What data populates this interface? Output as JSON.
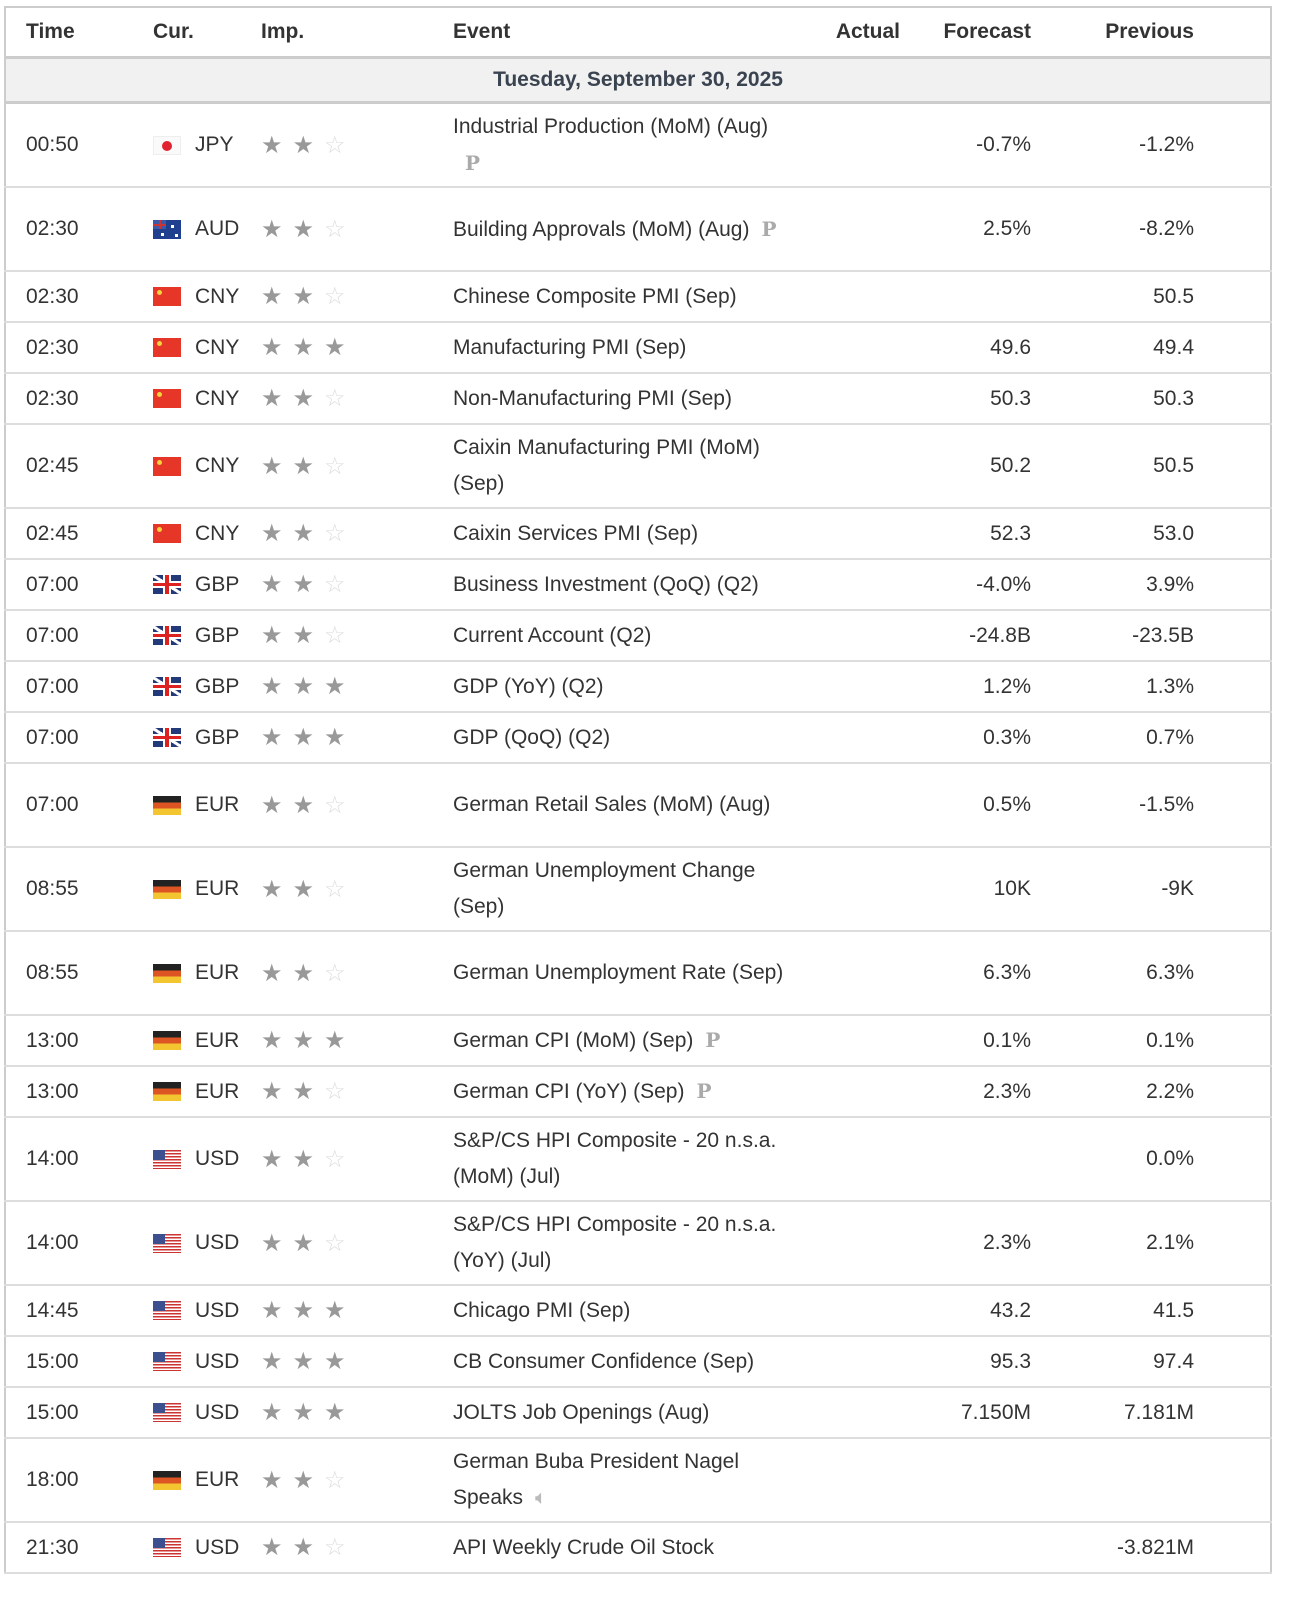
{
  "headers": {
    "time": "Time",
    "cur": "Cur.",
    "imp": "Imp.",
    "event": "Event",
    "actual": "Actual",
    "forecast": "Forecast",
    "previous": "Previous"
  },
  "date": "Tuesday, September 30, 2025",
  "rows": [
    {
      "time": "00:50",
      "cur": "JPY",
      "imp": 2,
      "event": "Industrial Production (MoM) (Aug)",
      "prelim": "P",
      "actual": "",
      "forecast": "-0.7%",
      "previous": "-1.2%",
      "tall": true
    },
    {
      "time": "02:30",
      "cur": "AUD",
      "imp": 2,
      "event": "Building Approvals (MoM) (Aug)",
      "prelim": "P",
      "actual": "",
      "forecast": "2.5%",
      "previous": "-8.2%",
      "tall": true
    },
    {
      "time": "02:30",
      "cur": "CNY",
      "imp": 2,
      "event": "Chinese Composite PMI (Sep)",
      "actual": "",
      "forecast": "",
      "previous": "50.5"
    },
    {
      "time": "02:30",
      "cur": "CNY",
      "imp": 3,
      "event": "Manufacturing PMI (Sep)",
      "actual": "",
      "forecast": "49.6",
      "previous": "49.4"
    },
    {
      "time": "02:30",
      "cur": "CNY",
      "imp": 2,
      "event": "Non-Manufacturing PMI (Sep)",
      "actual": "",
      "forecast": "50.3",
      "previous": "50.3"
    },
    {
      "time": "02:45",
      "cur": "CNY",
      "imp": 2,
      "event": "Caixin Manufacturing PMI (MoM) (Sep)",
      "actual": "",
      "forecast": "50.2",
      "previous": "50.5",
      "tall": true
    },
    {
      "time": "02:45",
      "cur": "CNY",
      "imp": 2,
      "event": "Caixin Services PMI (Sep)",
      "actual": "",
      "forecast": "52.3",
      "previous": "53.0"
    },
    {
      "time": "07:00",
      "cur": "GBP",
      "imp": 2,
      "event": "Business Investment (QoQ) (Q2)",
      "actual": "",
      "forecast": "-4.0%",
      "previous": "3.9%"
    },
    {
      "time": "07:00",
      "cur": "GBP",
      "imp": 2,
      "event": "Current Account (Q2)",
      "actual": "",
      "forecast": "-24.8B",
      "previous": "-23.5B"
    },
    {
      "time": "07:00",
      "cur": "GBP",
      "imp": 3,
      "event": "GDP (YoY) (Q2)",
      "actual": "",
      "forecast": "1.2%",
      "previous": "1.3%"
    },
    {
      "time": "07:00",
      "cur": "GBP",
      "imp": 3,
      "event": "GDP (QoQ) (Q2)",
      "actual": "",
      "forecast": "0.3%",
      "previous": "0.7%"
    },
    {
      "time": "07:00",
      "cur": "EUR",
      "imp": 2,
      "event": "German Retail Sales (MoM) (Aug)",
      "actual": "",
      "forecast": "0.5%",
      "previous": "-1.5%",
      "tall": true
    },
    {
      "time": "08:55",
      "cur": "EUR",
      "imp": 2,
      "event": "German Unemployment Change (Sep)",
      "actual": "",
      "forecast": "10K",
      "previous": "-9K",
      "tall": true
    },
    {
      "time": "08:55",
      "cur": "EUR",
      "imp": 2,
      "event": "German Unemployment Rate (Sep)",
      "actual": "",
      "forecast": "6.3%",
      "previous": "6.3%",
      "tall": true
    },
    {
      "time": "13:00",
      "cur": "EUR",
      "imp": 3,
      "event": "German CPI (MoM) (Sep)",
      "prelim": "P",
      "actual": "",
      "forecast": "0.1%",
      "previous": "0.1%"
    },
    {
      "time": "13:00",
      "cur": "EUR",
      "imp": 2,
      "event": "German CPI (YoY) (Sep)",
      "prelim": "P",
      "actual": "",
      "forecast": "2.3%",
      "previous": "2.2%"
    },
    {
      "time": "14:00",
      "cur": "USD",
      "imp": 2,
      "event": "S&P/CS HPI Composite - 20 n.s.a. (MoM) (Jul)",
      "actual": "",
      "forecast": "",
      "previous": "0.0%",
      "tall": true
    },
    {
      "time": "14:00",
      "cur": "USD",
      "imp": 2,
      "event": "S&P/CS HPI Composite - 20 n.s.a. (YoY) (Jul)",
      "actual": "",
      "forecast": "2.3%",
      "previous": "2.1%",
      "tall": true
    },
    {
      "time": "14:45",
      "cur": "USD",
      "imp": 3,
      "event": "Chicago PMI (Sep)",
      "actual": "",
      "forecast": "43.2",
      "previous": "41.5"
    },
    {
      "time": "15:00",
      "cur": "USD",
      "imp": 3,
      "event": "CB Consumer Confidence (Sep)",
      "actual": "",
      "forecast": "95.3",
      "previous": "97.4"
    },
    {
      "time": "15:00",
      "cur": "USD",
      "imp": 3,
      "event": "JOLTS Job Openings (Aug)",
      "actual": "",
      "forecast": "7.150M",
      "previous": "7.181M"
    },
    {
      "time": "18:00",
      "cur": "EUR",
      "imp": 2,
      "event": "German Buba President Nagel Speaks",
      "speech": true,
      "actual": "",
      "forecast": "",
      "previous": "",
      "tall": true
    },
    {
      "time": "21:30",
      "cur": "USD",
      "imp": 2,
      "event": "API Weekly Crude Oil Stock",
      "actual": "",
      "forecast": "",
      "previous": "-3.821M"
    }
  ],
  "icons": {
    "prelim": "P",
    "speech": "speaker-icon",
    "star": "star-icon"
  }
}
